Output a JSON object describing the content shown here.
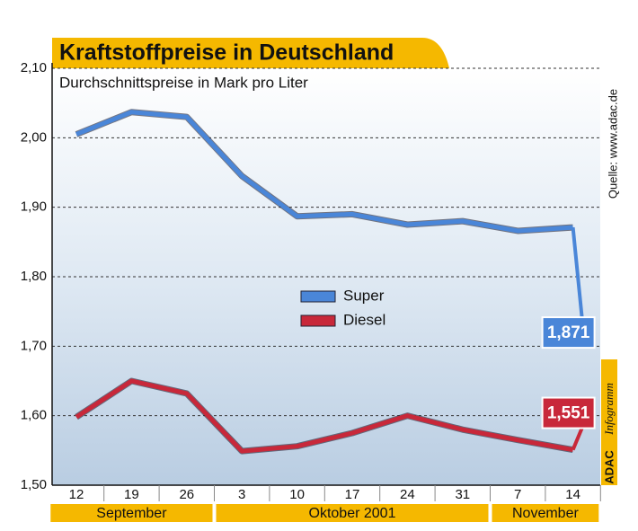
{
  "chart_data": {
    "type": "line",
    "title": "Kraftstoffpreise in Deutschland",
    "subtitle": "Durchschnittspreise in Mark pro Liter",
    "source": "Quelle: www.adac.de",
    "credit_brand": "ADAC",
    "credit": "Infogramm",
    "categories": [
      "12",
      "19",
      "26",
      "3",
      "10",
      "17",
      "24",
      "31",
      "7",
      "14"
    ],
    "months": [
      "September",
      "Oktober 2001",
      "November"
    ],
    "series": [
      {
        "name": "Super",
        "color": "#4a86d8",
        "values": [
          2.005,
          2.037,
          2.03,
          1.945,
          1.887,
          1.89,
          1.875,
          1.88,
          1.866,
          1.871
        ],
        "value_labels": [
          null,
          null,
          null,
          null,
          null,
          null,
          null,
          null,
          null,
          "1,871"
        ]
      },
      {
        "name": "Diesel",
        "color": "#c8283a",
        "values": [
          1.598,
          1.65,
          1.632,
          1.549,
          1.556,
          1.575,
          1.6,
          1.58,
          1.565,
          1.551
        ],
        "value_labels": [
          null,
          null,
          null,
          null,
          null,
          null,
          null,
          null,
          null,
          "1,551"
        ]
      }
    ],
    "ylim": [
      1.5,
      2.1
    ],
    "yticks": [
      {
        "value": 1.5,
        "label": "1,50"
      },
      {
        "value": 1.6,
        "label": "1,60"
      },
      {
        "value": 1.7,
        "label": "1,70"
      },
      {
        "value": 1.8,
        "label": "1,80"
      },
      {
        "value": 1.9,
        "label": "1,90"
      },
      {
        "value": 2.0,
        "label": "2,00"
      },
      {
        "value": 2.1,
        "label": "2,10"
      }
    ],
    "grid": true
  }
}
